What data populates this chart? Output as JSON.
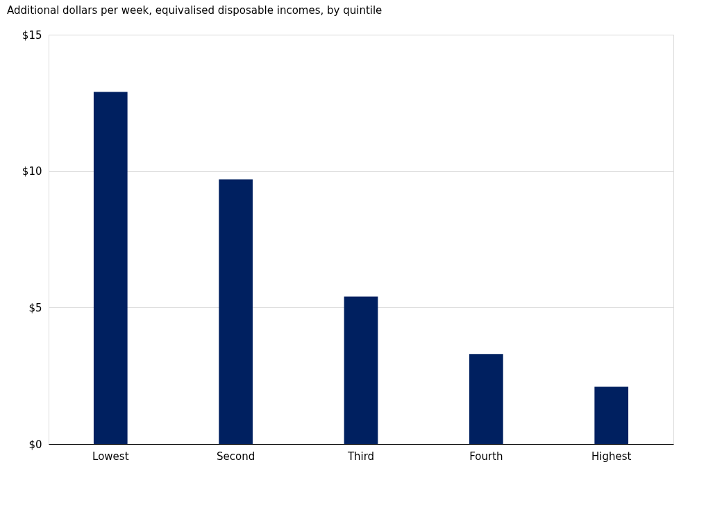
{
  "chart_data": {
    "type": "bar",
    "title": "Additional dollars per week, equivalised disposable incomes, by quintile",
    "categories": [
      "Lowest",
      "Second",
      "Third",
      "Fourth",
      "Highest"
    ],
    "values": [
      12.9,
      9.7,
      5.4,
      3.3,
      2.1
    ],
    "color": "#002060",
    "ylim": [
      0,
      15
    ],
    "yticks": [
      {
        "value": 0,
        "label": "$0"
      },
      {
        "value": 5,
        "label": "$5"
      },
      {
        "value": 10,
        "label": "$10"
      },
      {
        "value": 15,
        "label": "$15"
      }
    ],
    "grid": "y"
  }
}
